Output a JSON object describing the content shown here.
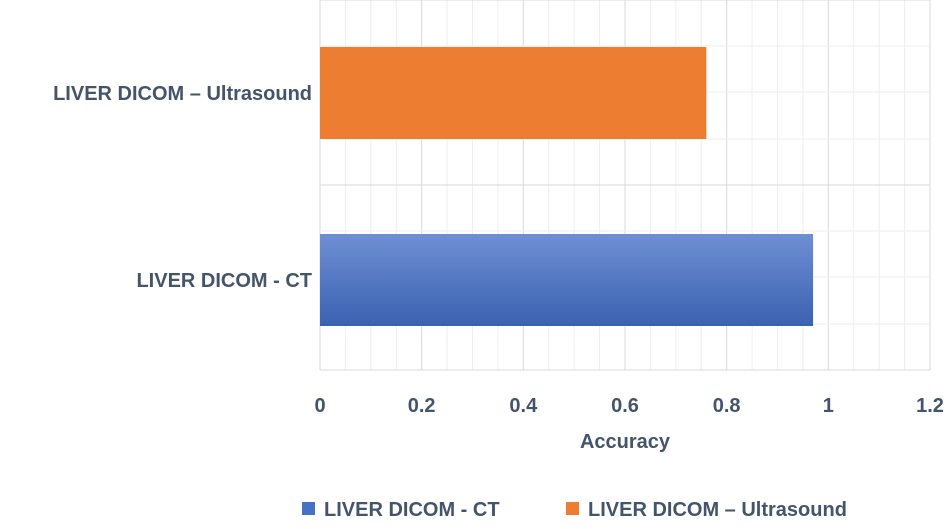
{
  "chart_data": {
    "type": "bar",
    "orientation": "horizontal",
    "categories": [
      "LIVER DICOM – Ultrasound",
      "LIVER DICOM - CT"
    ],
    "series": [
      {
        "name": "LIVER DICOM - CT",
        "category": "LIVER DICOM - CT",
        "value": 0.97,
        "color": "#4472c4"
      },
      {
        "name": "LIVER DICOM – Ultrasound",
        "category": "LIVER DICOM – Ultrasound",
        "value": 0.76,
        "color": "#ed7d31"
      }
    ],
    "title": "",
    "xlabel": "Accuracy",
    "ylabel": "",
    "xlim": [
      0,
      1.2
    ],
    "xticks": [
      "0",
      "0.2",
      "0.4",
      "0.6",
      "0.8",
      "1",
      "1.2"
    ],
    "grid": true,
    "legend_position": "bottom"
  }
}
